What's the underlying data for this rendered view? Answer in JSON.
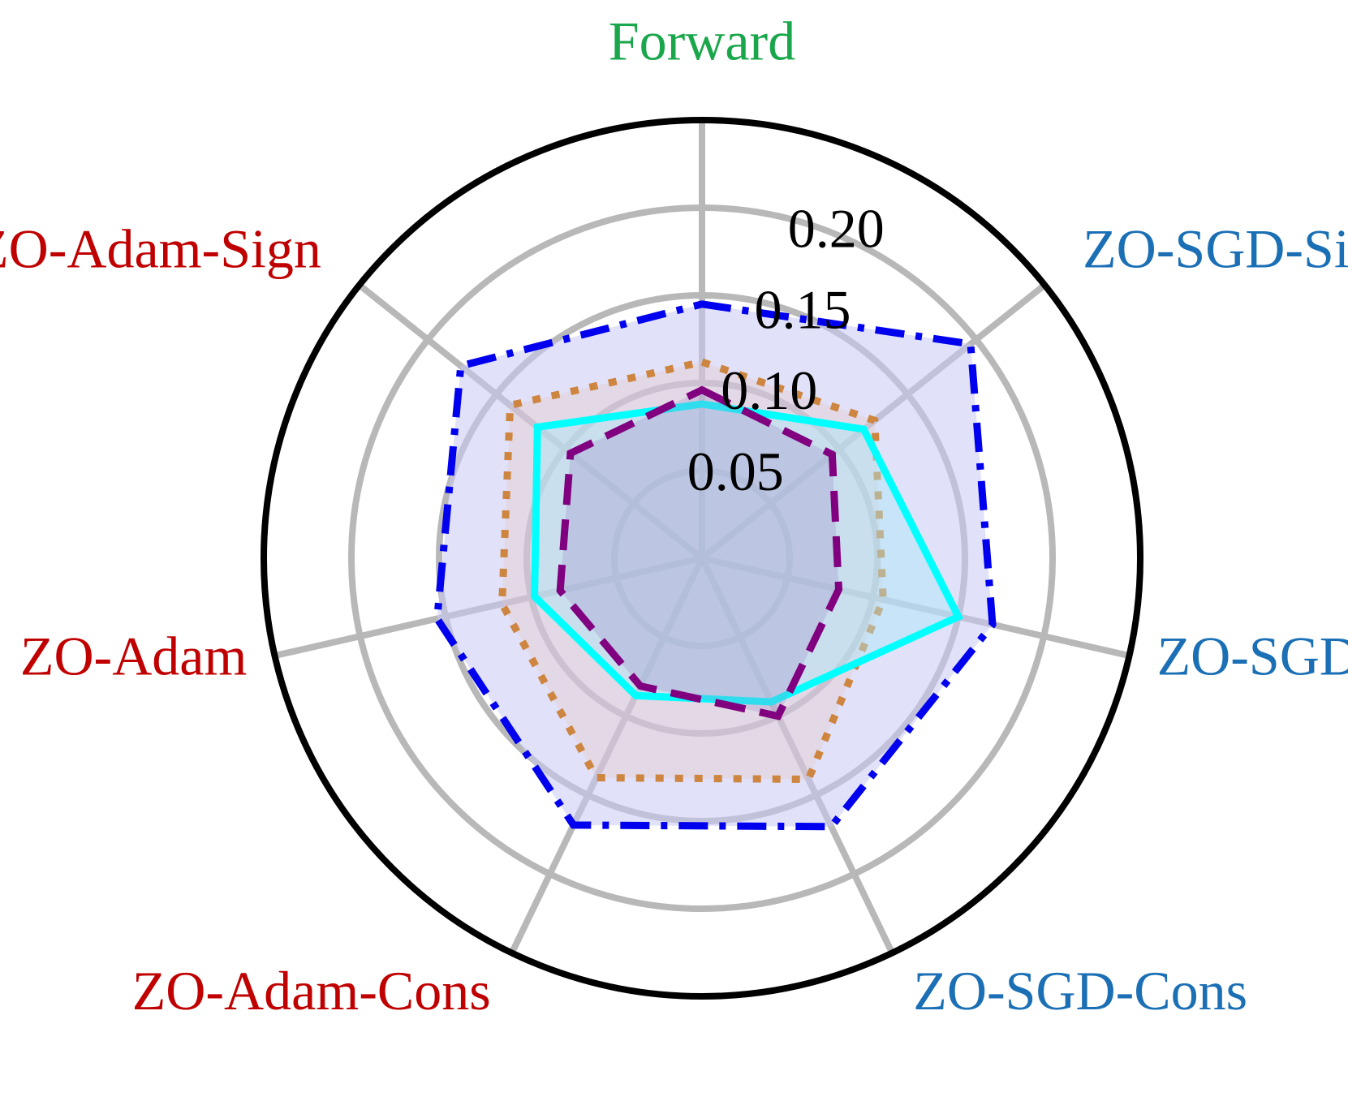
{
  "chart_data": {
    "type": "radar",
    "title": "",
    "axes": [
      {
        "label": "Forward",
        "color": "#1aa64a"
      },
      {
        "label": "ZO-SGD-Sign",
        "color": "#1b6fb5"
      },
      {
        "label": "ZO-SGD",
        "color": "#1b6fb5"
      },
      {
        "label": "ZO-SGD-Cons",
        "color": "#1b6fb5"
      },
      {
        "label": "ZO-Adam-Cons",
        "color": "#c00000"
      },
      {
        "label": "ZO-Adam",
        "color": "#c00000"
      },
      {
        "label": "ZO-Adam-Sign",
        "color": "#c00000"
      }
    ],
    "radial_range": [
      0,
      0.25
    ],
    "radial_ticks": [
      {
        "value": 0.05,
        "label": "0.05"
      },
      {
        "value": 0.1,
        "label": "0.10"
      },
      {
        "value": 0.15,
        "label": "0.15"
      },
      {
        "value": 0.2,
        "label": "0.20"
      }
    ],
    "grid": true,
    "legend": "none",
    "series": [
      {
        "color": "#0000ee",
        "fill": "#c8c8f5",
        "fill_opacity": 0.55,
        "line_style": "dashdot",
        "values": [
          0.145,
          0.196,
          0.17,
          0.17,
          0.169,
          0.155,
          0.176
        ]
      },
      {
        "color": "#cd853f",
        "fill": "#e8c4b8",
        "fill_opacity": 0.3,
        "line_style": "dotted",
        "values": [
          0.112,
          0.126,
          0.106,
          0.14,
          0.139,
          0.117,
          0.14
        ]
      },
      {
        "color": "#00ffff",
        "fill": "#a8e8f8",
        "fill_opacity": 0.45,
        "line_style": "solid",
        "values": [
          0.088,
          0.118,
          0.15,
          0.091,
          0.087,
          0.098,
          0.12
        ]
      },
      {
        "color": "#800080",
        "fill": "#a090c8",
        "fill_opacity": 0.3,
        "line_style": "dashed",
        "values": [
          0.096,
          0.095,
          0.08,
          0.1,
          0.081,
          0.083,
          0.096
        ]
      }
    ]
  }
}
